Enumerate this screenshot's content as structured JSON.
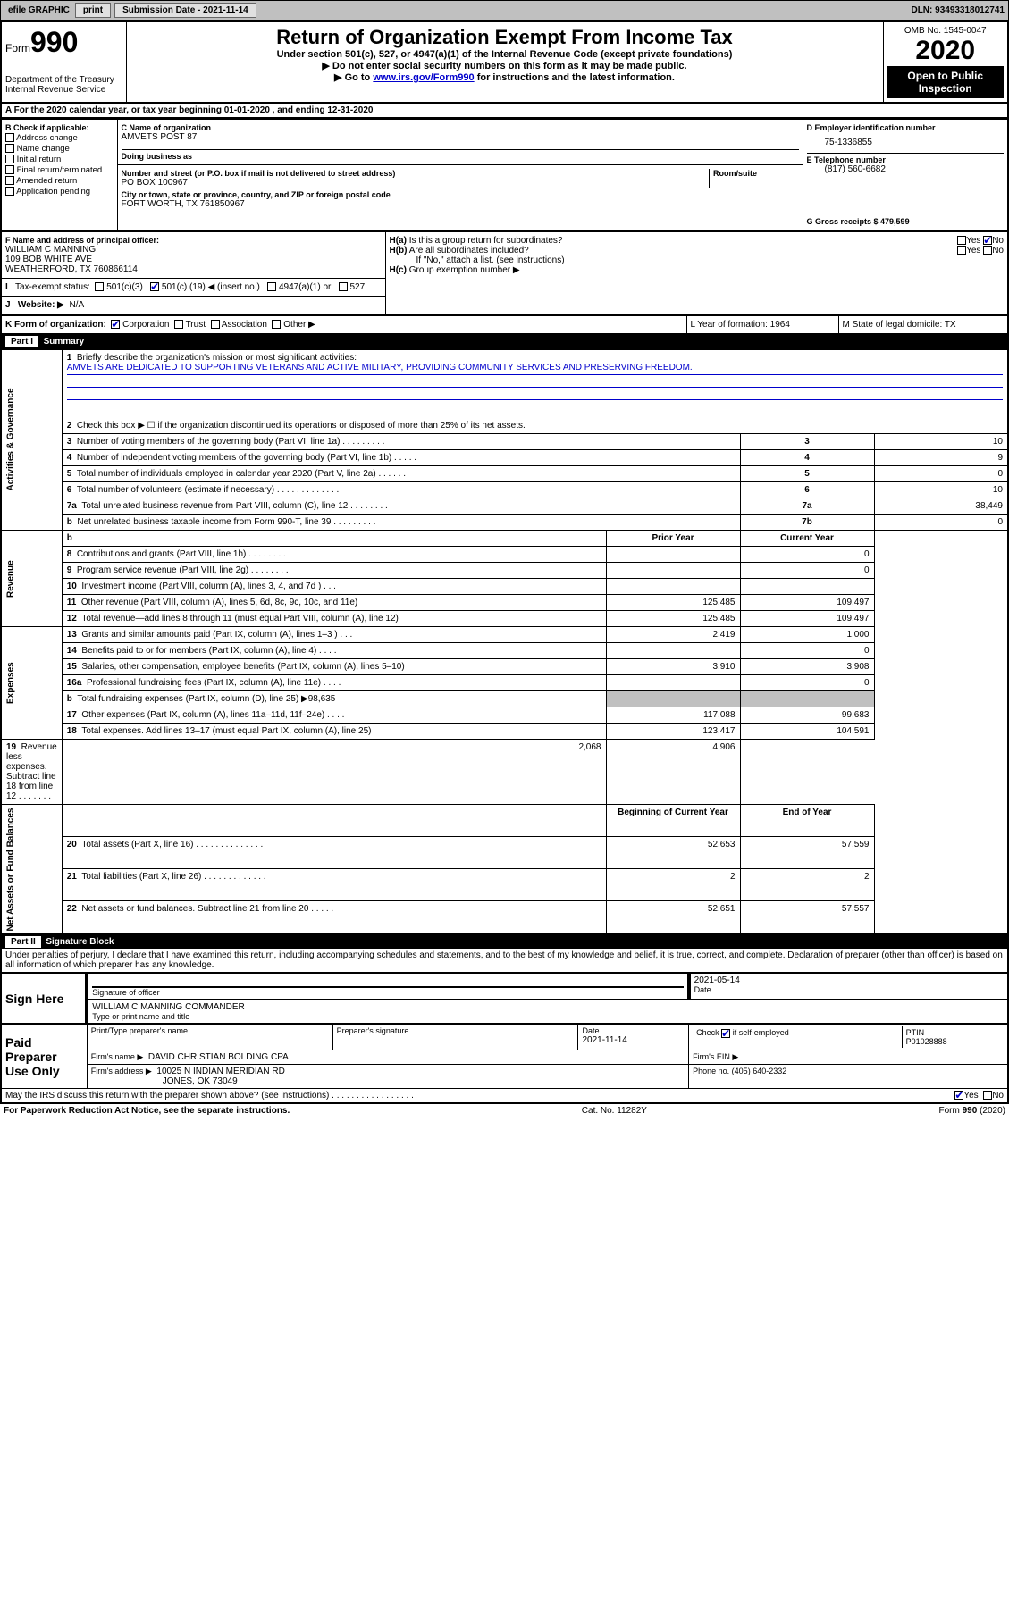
{
  "topbar": {
    "efile_label": "efile GRAPHIC",
    "print_btn": "print",
    "submission_label": "Submission Date - 2021-11-14",
    "dln_label": "DLN: 93493318012741"
  },
  "header": {
    "form_label": "Form",
    "form_number": "990",
    "dept_line1": "Department of the Treasury",
    "dept_line2": "Internal Revenue Service",
    "title": "Return of Organization Exempt From Income Tax",
    "under_section": "Under section 501(c), 527, or 4947(a)(1) of the Internal Revenue Code (except private foundations)",
    "ssn_warning": "▶ Do not enter social security numbers on this form as it may be made public.",
    "goto": "▶ Go to ",
    "goto_link": "www.irs.gov/Form990",
    "goto_after": " for instructions and the latest information.",
    "omb": "OMB No. 1545-0047",
    "year": "2020",
    "inspection": "Open to Public Inspection"
  },
  "section_a": "For the 2020 calendar year, or tax year beginning 01-01-2020    , and ending 12-31-2020",
  "box_b": {
    "heading": "B Check if applicable:",
    "items": [
      "Address change",
      "Name change",
      "Initial return",
      "Final return/terminated",
      "Amended return",
      "Application pending"
    ]
  },
  "box_c": {
    "label_name": "C Name of organization",
    "name": "AMVETS POST 87",
    "dba_label": "Doing business as",
    "addr_label": "Number and street (or P.O. box if mail is not delivered to street address)",
    "room_label": "Room/suite",
    "address": "PO BOX 100967",
    "city_label": "City or town, state or province, country, and ZIP or foreign postal code",
    "city": "FORT WORTH, TX  761850967"
  },
  "box_d": {
    "label": "D Employer identification number",
    "value": "75-1336855"
  },
  "box_e": {
    "label": "E Telephone number",
    "value": "(817) 560-6682"
  },
  "box_g": {
    "label": "G Gross receipts $ 479,599"
  },
  "box_f": {
    "label": "F Name and address of principal officer:",
    "name": "WILLIAM C MANNING",
    "addr1": "109 BOB WHITE AVE",
    "addr2": "WEATHERFORD, TX  760866114"
  },
  "box_h": {
    "ha_label": "H(a)",
    "ha_text": "Is this a group return for subordinates?",
    "hb_label": "H(b)",
    "hb_text": "Are all subordinates included?",
    "yes": "Yes",
    "no": "No",
    "attach": "If \"No,\" attach a list. (see instructions)",
    "hc_label": "H(c)",
    "hc_text": "Group exemption number ▶"
  },
  "box_i": {
    "label": "I",
    "tax_status": "Tax-exempt status:",
    "c3": "501(c)(3)",
    "c_num_pre": "501(c) (",
    "c_num": "19",
    "c_num_post": ") ◀ (insert no.)",
    "c4947": "4947(a)(1) or",
    "c527": "527"
  },
  "box_j": {
    "label": "J",
    "website_label": "Website: ▶",
    "website": "N/A"
  },
  "box_k": {
    "label": "K Form of organization:",
    "corp": "Corporation",
    "trust": "Trust",
    "assoc": "Association",
    "other": "Other ▶"
  },
  "box_l": {
    "label": "L Year of formation: 1964"
  },
  "box_m": {
    "label": "M State of legal domicile: TX"
  },
  "part1": {
    "header": "Part I",
    "title": "Summary",
    "side_gov": "Activities & Governance",
    "side_rev": "Revenue",
    "side_exp": "Expenses",
    "side_net": "Net Assets or Fund Balances",
    "q1_label": "1",
    "q1": "Briefly describe the organization's mission or most significant activities:",
    "q1_ans": "AMVETS ARE DEDICATED TO SUPPORTING VETERANS AND ACTIVE MILITARY, PROVIDING COMMUNITY SERVICES AND PRESERVING FREEDOM.",
    "q2_label": "2",
    "q2": "Check this box ▶ ☐  if the organization discontinued its operations or disposed of more than 25% of its net assets.",
    "rows": [
      {
        "n": "3",
        "text": "Number of voting members of the governing body (Part VI, line 1a)  .    .    .    .    .    .    .    .    .",
        "rn": "3",
        "v": "10"
      },
      {
        "n": "4",
        "text": "Number of independent voting members of the governing body (Part VI, line 1b)  .    .    .    .    .",
        "rn": "4",
        "v": "9"
      },
      {
        "n": "5",
        "text": "Total number of individuals employed in calendar year 2020 (Part V, line 2a)  .    .    .    .    .    .",
        "rn": "5",
        "v": "0"
      },
      {
        "n": "6",
        "text": "Total number of volunteers (estimate if necessary)  .    .    .    .    .    .    .    .    .    .    .    .    .",
        "rn": "6",
        "v": "10"
      },
      {
        "n": "7a",
        "text": "Total unrelated business revenue from Part VIII, column (C), line 12  .    .    .    .    .    .    .    .",
        "rn": "7a",
        "v": "38,449"
      },
      {
        "n": "b",
        "text": "Net unrelated business taxable income from Form 990-T, line 39  .    .    .    .    .    .    .    .    .",
        "rn": "7b",
        "v": "0"
      }
    ],
    "prior_year": "Prior Year",
    "current_year": "Current Year",
    "revenue_rows": [
      {
        "n": "8",
        "text": "Contributions and grants (Part VIII, line 1h)  .    .    .    .    .    .    .    .",
        "py": "",
        "cy": "0"
      },
      {
        "n": "9",
        "text": "Program service revenue (Part VIII, line 2g)  .    .    .    .    .    .    .    .",
        "py": "",
        "cy": "0"
      },
      {
        "n": "10",
        "text": "Investment income (Part VIII, column (A), lines 3, 4, and 7d )  .    .    .",
        "py": "",
        "cy": ""
      },
      {
        "n": "11",
        "text": "Other revenue (Part VIII, column (A), lines 5, 6d, 8c, 9c, 10c, and 11e)",
        "py": "125,485",
        "cy": "109,497"
      },
      {
        "n": "12",
        "text": "Total revenue—add lines 8 through 11 (must equal Part VIII, column (A), line 12)",
        "py": "125,485",
        "cy": "109,497"
      }
    ],
    "expense_rows": [
      {
        "n": "13",
        "text": "Grants and similar amounts paid (Part IX, column (A), lines 1–3 )  .    .    .",
        "py": "2,419",
        "cy": "1,000"
      },
      {
        "n": "14",
        "text": "Benefits paid to or for members (Part IX, column (A), line 4)  .    .    .    .",
        "py": "",
        "cy": "0"
      },
      {
        "n": "15",
        "text": "Salaries, other compensation, employee benefits (Part IX, column (A), lines 5–10)",
        "py": "3,910",
        "cy": "3,908"
      },
      {
        "n": "16a",
        "text": "Professional fundraising fees (Part IX, column (A), line 11e)  .    .    .    .",
        "py": "",
        "cy": "0"
      },
      {
        "n": "b",
        "text": "Total fundraising expenses (Part IX, column (D), line 25) ▶98,635",
        "py": "grey",
        "cy": "grey"
      },
      {
        "n": "17",
        "text": "Other expenses (Part IX, column (A), lines 11a–11d, 11f–24e)  .    .    .    .",
        "py": "117,088",
        "cy": "99,683"
      },
      {
        "n": "18",
        "text": "Total expenses. Add lines 13–17 (must equal Part IX, column (A), line 25)",
        "py": "123,417",
        "cy": "104,591"
      },
      {
        "n": "19",
        "text": "Revenue less expenses. Subtract line 18 from line 12  .    .    .    .    .    .    .",
        "py": "2,068",
        "cy": "4,906"
      }
    ],
    "begin_year": "Beginning of Current Year",
    "end_year": "End of Year",
    "net_rows": [
      {
        "n": "20",
        "text": "Total assets (Part X, line 16)  .    .    .    .    .    .    .    .    .    .    .    .    .    .",
        "py": "52,653",
        "cy": "57,559"
      },
      {
        "n": "21",
        "text": "Total liabilities (Part X, line 26)  .    .    .    .    .    .    .    .    .    .    .    .    .",
        "py": "2",
        "cy": "2"
      },
      {
        "n": "22",
        "text": "Net assets or fund balances. Subtract line 21 from line 20  .    .    .    .    .",
        "py": "52,651",
        "cy": "57,557"
      }
    ]
  },
  "part2": {
    "header": "Part II",
    "title": "Signature Block",
    "declaration": "Under penalties of perjury, I declare that I have examined this return, including accompanying schedules and statements, and to the best of my knowledge and belief, it is true, correct, and complete. Declaration of preparer (other than officer) is based on all information of which preparer has any knowledge.",
    "sign_here": "Sign Here",
    "sig_officer": "Signature of officer",
    "date_label": "Date",
    "date_val": "2021-05-14",
    "officer_name": "WILLIAM C MANNING  COMMANDER",
    "type_name": "Type or print name and title",
    "paid_prep": "Paid Preparer Use Only",
    "print_name_label": "Print/Type preparer's name",
    "prep_sig_label": "Preparer's signature",
    "prep_date_label": "Date",
    "prep_date": "2021-11-14",
    "check_if": "Check",
    "check_if2": "if self-employed",
    "ptin_label": "PTIN",
    "ptin": "P01028888",
    "firm_name_label": "Firm's name      ▶",
    "firm_name": "DAVID CHRISTIAN BOLDING CPA",
    "firm_ein_label": "Firm's EIN ▶",
    "firm_addr_label": "Firm's address ▶",
    "firm_addr1": "10025 N INDIAN MERIDIAN RD",
    "firm_addr2": "JONES, OK  73049",
    "phone_label": "Phone no. (405) 640-2332",
    "discuss": "May the IRS discuss this return with the preparer shown above? (see instructions)  .    .    .    .    .    .    .    .    .    .    .    .    .    .    .    .    .",
    "yes": "Yes",
    "no": "No"
  },
  "footer": {
    "paperwork": "For Paperwork Reduction Act Notice, see the separate instructions.",
    "cat": "Cat. No. 11282Y",
    "form": "Form 990 (2020)"
  }
}
